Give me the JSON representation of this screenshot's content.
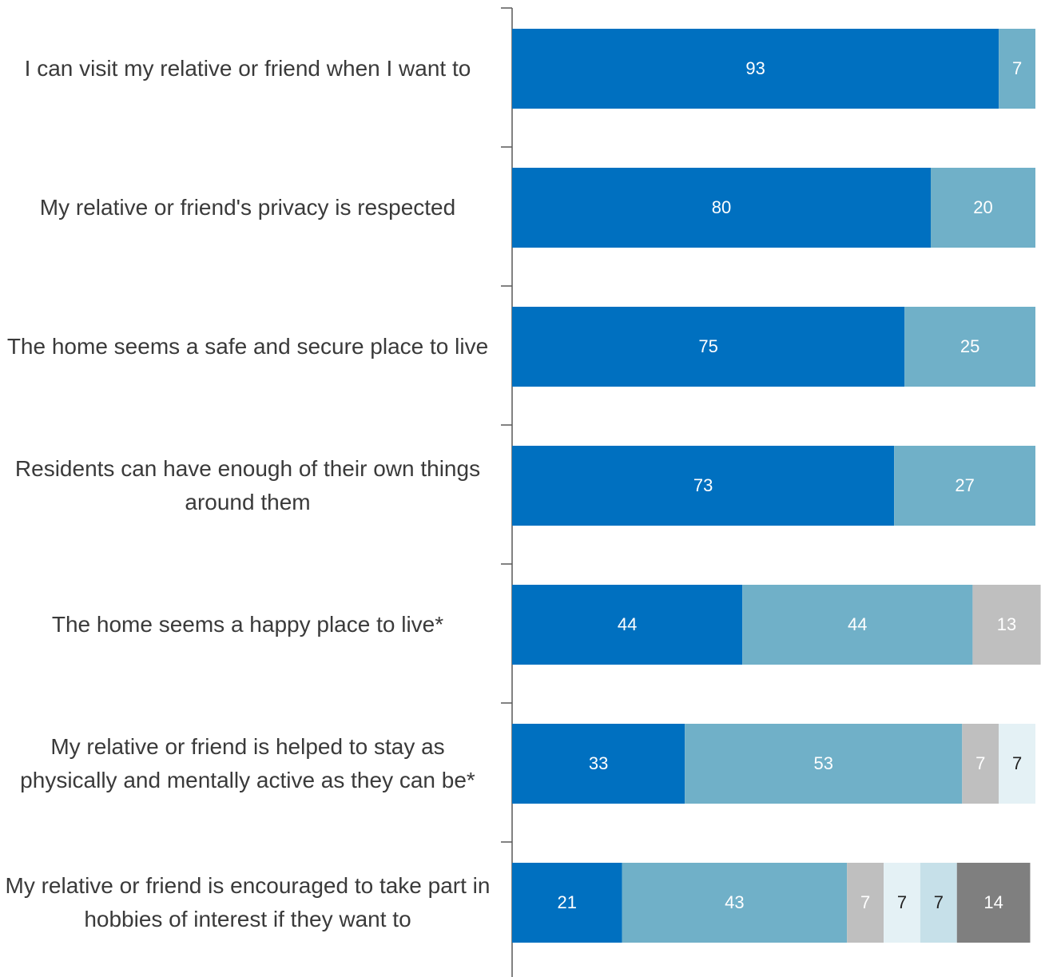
{
  "chart_data": {
    "type": "stacked-bar-horizontal",
    "categories": [
      "I can visit my relative or friend when I want to",
      "My relative or friend's privacy is respected",
      "The home seems a safe and secure place to live",
      "Residents can have enough of their own things around them",
      "The home seems a happy place to live*",
      "My relative or friend is helped to stay as physically and mentally active as they can be*",
      "My relative or friend is encouraged to take part in hobbies of interest if they want to"
    ],
    "series": [
      {
        "color": "#0070c0",
        "values": [
          93,
          80,
          75,
          73,
          44,
          33,
          21
        ]
      },
      {
        "color": "#70b0c8",
        "values": [
          7,
          20,
          25,
          27,
          44,
          53,
          43
        ]
      },
      {
        "color": "#bfbfbf",
        "values": [
          null,
          null,
          null,
          null,
          13,
          7,
          7
        ]
      },
      {
        "color": "#e4f1f5",
        "values": [
          null,
          null,
          null,
          null,
          null,
          7,
          7
        ]
      },
      {
        "color": "#c6e0e9",
        "values": [
          null,
          null,
          null,
          null,
          null,
          null,
          7
        ]
      },
      {
        "color": "#7f7f7f",
        "values": [
          null,
          null,
          null,
          null,
          null,
          null,
          14
        ]
      }
    ],
    "xlim": [
      0,
      100
    ]
  }
}
